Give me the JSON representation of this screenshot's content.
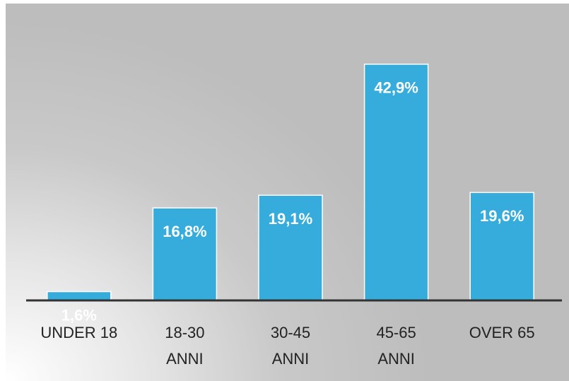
{
  "chart_data": {
    "type": "bar",
    "categories": [
      "UNDER 18",
      "18-30\nANNI",
      "30-45\nANNI",
      "45-65\nANNI",
      "OVER 65"
    ],
    "values": [
      1.6,
      16.8,
      19.1,
      42.9,
      19.6
    ],
    "value_labels": [
      "1,6%",
      "16,8%",
      "19,1%",
      "42,9%",
      "19,6%"
    ],
    "color": "#35acdc",
    "ylim": [
      0,
      50
    ]
  }
}
